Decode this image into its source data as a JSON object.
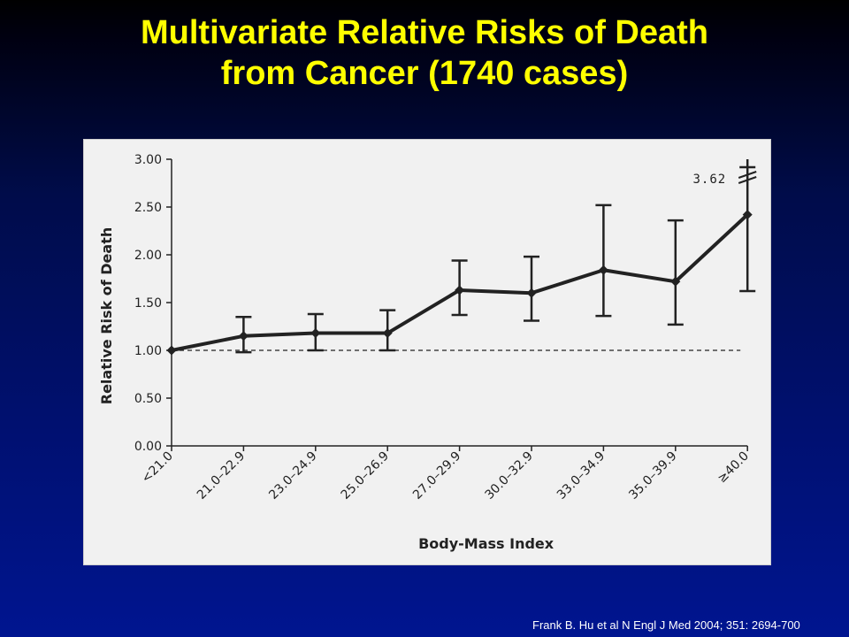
{
  "slide": {
    "title_line1": "Multivariate Relative Risks of Death",
    "title_line2": "from Cancer (1740 cases)",
    "citation": "Frank B. Hu et al N Engl J Med 2004; 351: 2694-700"
  },
  "colors": {
    "title": "#ffff00",
    "panel_background": "#f1f1f1",
    "plot_ink": "#222222",
    "citation": "#ffffff"
  },
  "chart_data": {
    "type": "line",
    "xlabel": "Body-Mass Index",
    "ylabel": "Relative Risk of Death",
    "ylim": [
      0,
      3.0
    ],
    "yticks": [
      "0.00",
      "0.50",
      "1.00",
      "1.50",
      "2.00",
      "2.50",
      "3.00"
    ],
    "categories": [
      "<21.0",
      "21.0–22.9",
      "23.0–24.9",
      "25.0–26.9",
      "27.0–29.9",
      "30.0–32.9",
      "33.0–34.9",
      "35.0–39.9",
      "≥40.0"
    ],
    "series": [
      {
        "values": [
          1.0,
          1.15,
          1.18,
          1.18,
          1.63,
          1.6,
          1.84,
          1.72,
          2.42
        ],
        "ci_lower": [
          null,
          0.98,
          1.0,
          1.0,
          1.37,
          1.31,
          1.36,
          1.27,
          1.62
        ],
        "ci_upper": [
          null,
          1.35,
          1.38,
          1.42,
          1.94,
          1.98,
          2.52,
          2.36,
          3.62
        ]
      }
    ],
    "reference_line": 1.0,
    "annotations": [
      {
        "text": "3.62",
        "category": "≥40.0"
      }
    ],
    "grid": false,
    "legend": "none"
  }
}
